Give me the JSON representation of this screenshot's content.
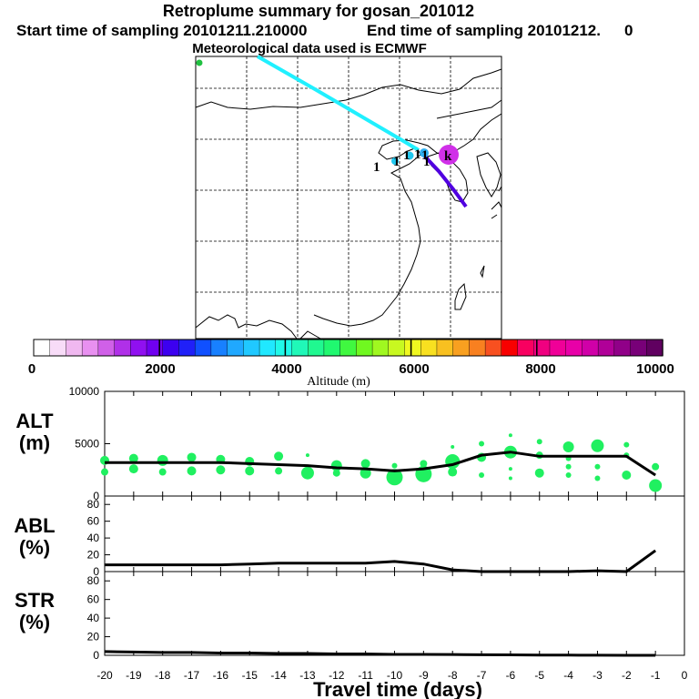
{
  "header": {
    "title": "Retroplume summary for gosan_201012",
    "start": "Start time of sampling 20101211.210000",
    "end": "End time of sampling 20101212.",
    "end_suffix": "0",
    "met": "Meteorological data used is ECMWF"
  },
  "map": {
    "labels": [
      "1",
      "1",
      "1",
      "1",
      "1",
      "1"
    ],
    "release_label": "k"
  },
  "colorbar": {
    "ticks": [
      "0",
      "2000",
      "4000",
      "6000",
      "8000",
      "10000"
    ],
    "label": "Altitude (m)",
    "colors": [
      "#ffffff",
      "#f8dcf8",
      "#f0b8f0",
      "#e890f0",
      "#d060e8",
      "#b030e8",
      "#9010f0",
      "#7000f0",
      "#3c00f0",
      "#2020f8",
      "#1050ff",
      "#1880ff",
      "#20a8ff",
      "#20c8ff",
      "#20e8ff",
      "#20f8e8",
      "#20f8b8",
      "#20f890",
      "#20f870",
      "#40f840",
      "#70f820",
      "#a0f820",
      "#c8f820",
      "#f0f820",
      "#f8e020",
      "#f8c020",
      "#f8a020",
      "#f88020",
      "#f85020",
      "#f80000",
      "#f80060",
      "#f00080",
      "#f00098",
      "#e800a8",
      "#d000a8",
      "#b00098",
      "#900088",
      "#780078",
      "#600060"
    ]
  },
  "chart_data": [
    {
      "type": "scatter",
      "name": "ALT",
      "ylabel": "ALT\n(m)",
      "ylabel_line1": "ALT",
      "ylabel_line2": "(m)",
      "yticks": [
        "10000",
        "5000",
        "0"
      ],
      "ylim": [
        0,
        10000
      ],
      "x": [
        -20,
        -19,
        -18,
        -17,
        -16,
        -15,
        -14,
        -13,
        -12,
        -11,
        -10,
        -9,
        -8,
        -7,
        -6,
        -5,
        -4,
        -3,
        -2,
        -1
      ],
      "mean_altitude": [
        3200,
        3200,
        3200,
        3200,
        3200,
        3100,
        3000,
        2900,
        2700,
        2600,
        2400,
        2600,
        3000,
        3900,
        4200,
        3800,
        3800,
        3800,
        3800,
        2000
      ],
      "cluster_points": [
        {
          "x": -20,
          "y": 3400,
          "r": 5
        },
        {
          "x": -20,
          "y": 2300,
          "r": 4
        },
        {
          "x": -19,
          "y": 3600,
          "r": 5
        },
        {
          "x": -19,
          "y": 2600,
          "r": 5
        },
        {
          "x": -18,
          "y": 3400,
          "r": 6
        },
        {
          "x": -18,
          "y": 2300,
          "r": 4
        },
        {
          "x": -17,
          "y": 3700,
          "r": 5
        },
        {
          "x": -17,
          "y": 2400,
          "r": 5
        },
        {
          "x": -16,
          "y": 3500,
          "r": 5
        },
        {
          "x": -16,
          "y": 2500,
          "r": 5
        },
        {
          "x": -15,
          "y": 3300,
          "r": 5
        },
        {
          "x": -15,
          "y": 2400,
          "r": 5
        },
        {
          "x": -14,
          "y": 3800,
          "r": 5
        },
        {
          "x": -14,
          "y": 2400,
          "r": 4
        },
        {
          "x": -13,
          "y": 3900,
          "r": 2
        },
        {
          "x": -13,
          "y": 2200,
          "r": 7
        },
        {
          "x": -12,
          "y": 2900,
          "r": 6
        },
        {
          "x": -12,
          "y": 2200,
          "r": 4
        },
        {
          "x": -11,
          "y": 3100,
          "r": 5
        },
        {
          "x": -11,
          "y": 2200,
          "r": 6
        },
        {
          "x": -10,
          "y": 1800,
          "r": 9
        },
        {
          "x": -10,
          "y": 2900,
          "r": 3
        },
        {
          "x": -9,
          "y": 2100,
          "r": 9
        },
        {
          "x": -9,
          "y": 3100,
          "r": 4
        },
        {
          "x": -8,
          "y": 4700,
          "r": 2
        },
        {
          "x": -8,
          "y": 3300,
          "r": 8
        },
        {
          "x": -8,
          "y": 2300,
          "r": 5
        },
        {
          "x": -7,
          "y": 5000,
          "r": 3
        },
        {
          "x": -7,
          "y": 3700,
          "r": 5
        },
        {
          "x": -7,
          "y": 2000,
          "r": 3
        },
        {
          "x": -6,
          "y": 5800,
          "r": 2
        },
        {
          "x": -6,
          "y": 4200,
          "r": 7
        },
        {
          "x": -6,
          "y": 2600,
          "r": 2
        },
        {
          "x": -6,
          "y": 1700,
          "r": 2
        },
        {
          "x": -5,
          "y": 5200,
          "r": 3
        },
        {
          "x": -5,
          "y": 3900,
          "r": 4
        },
        {
          "x": -5,
          "y": 2200,
          "r": 5
        },
        {
          "x": -4,
          "y": 4700,
          "r": 6
        },
        {
          "x": -4,
          "y": 3600,
          "r": 3
        },
        {
          "x": -4,
          "y": 2800,
          "r": 3
        },
        {
          "x": -4,
          "y": 2000,
          "r": 3
        },
        {
          "x": -3,
          "y": 4800,
          "r": 7
        },
        {
          "x": -3,
          "y": 2800,
          "r": 3
        },
        {
          "x": -3,
          "y": 1700,
          "r": 3
        },
        {
          "x": -2,
          "y": 4900,
          "r": 3
        },
        {
          "x": -2,
          "y": 3900,
          "r": 3
        },
        {
          "x": -2,
          "y": 2000,
          "r": 5
        },
        {
          "x": -1,
          "y": 2800,
          "r": 4
        },
        {
          "x": -1,
          "y": 1000,
          "r": 7
        }
      ]
    },
    {
      "type": "line",
      "name": "ABL",
      "ylabel_line1": "ABL",
      "ylabel_line2": "(%)",
      "yticks": [
        "80",
        "60",
        "40",
        "20",
        "0"
      ],
      "ylim": [
        0,
        90
      ],
      "x": [
        -20,
        -19,
        -18,
        -17,
        -16,
        -15,
        -14,
        -13,
        -12,
        -11,
        -10,
        -9,
        -8,
        -7,
        -6,
        -5,
        -4,
        -3,
        -2,
        -1
      ],
      "values": [
        8,
        8,
        8,
        8,
        8,
        9,
        10,
        10,
        10,
        10,
        12,
        9,
        2,
        0,
        0,
        0,
        0,
        1,
        0,
        25
      ]
    },
    {
      "type": "line",
      "name": "STR",
      "ylabel_line1": "STR",
      "ylabel_line2": "(%)",
      "yticks": [
        "80",
        "60",
        "40",
        "20",
        "0"
      ],
      "ylim": [
        0,
        90
      ],
      "x": [
        -20,
        -19,
        -18,
        -17,
        -16,
        -15,
        -14,
        -13,
        -12,
        -11,
        -10,
        -9,
        -8,
        -7,
        -6,
        -5,
        -4,
        -3,
        -2,
        -1
      ],
      "values": [
        4,
        3.5,
        3,
        3,
        2.5,
        2.5,
        2,
        2,
        1.5,
        1.5,
        1,
        1,
        0.8,
        0.6,
        0.5,
        0.3,
        0.2,
        0.1,
        0,
        0
      ]
    }
  ],
  "xaxis": {
    "ticks": [
      "-20",
      "-19",
      "-18",
      "-17",
      "-16",
      "-15",
      "-14",
      "-13",
      "-12",
      "-11",
      "-10",
      "-9",
      "-8",
      "-7",
      "-6",
      "-5",
      "-4",
      "-3",
      "-2",
      "-1",
      "0"
    ],
    "label": "Travel time (days)"
  }
}
